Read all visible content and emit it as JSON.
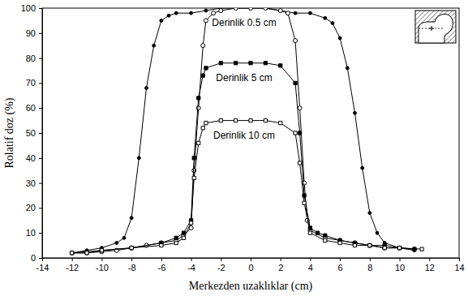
{
  "chart_data": {
    "type": "line",
    "x_label": "Merkezden uzaklıklar (cm)",
    "y_label": "Rolatif doz (%)",
    "xlim": [
      -14,
      14
    ],
    "ylim": [
      0,
      100
    ],
    "xticks": [
      -14,
      -12,
      -10,
      -8,
      -6,
      -4,
      -2,
      0,
      2,
      4,
      6,
      8,
      10,
      12,
      14
    ],
    "yticks": [
      0,
      10,
      20,
      30,
      40,
      50,
      60,
      70,
      80,
      90,
      100
    ],
    "grid": false,
    "series": [
      {
        "color": "#000000",
        "marker": "filled-circle",
        "line_style": "solid",
        "x": [
          -12,
          -11,
          -10,
          -9,
          -8.5,
          -8,
          -7.5,
          -7,
          -6.5,
          -6,
          -5.5,
          -5,
          -4,
          -3,
          -2,
          -1,
          0,
          1,
          2,
          3,
          4,
          5,
          5.5,
          6,
          6.5,
          7,
          7.5,
          8,
          8.5,
          9,
          10,
          11
        ],
        "values": [
          2,
          3,
          4,
          6,
          8,
          16,
          40,
          68,
          85,
          95,
          97,
          98,
          98,
          99,
          100,
          100,
          100,
          100,
          99,
          98,
          98,
          96,
          94,
          88,
          76,
          58,
          36,
          18,
          10,
          6,
          4,
          3
        ]
      },
      {
        "name": "Derinlik 0.5 cm",
        "color": "#000000",
        "marker": "open-circle",
        "line_style": "solid",
        "x": [
          -12,
          -11,
          -10,
          -9,
          -8,
          -7,
          -6,
          -5,
          -4.5,
          -4,
          -3.8,
          -3.5,
          -3.2,
          -3,
          -2.5,
          -2,
          -1,
          0,
          1,
          2,
          2.5,
          3,
          3.3,
          3.6,
          3.8,
          4,
          5,
          6,
          7,
          8,
          9,
          10,
          11
        ],
        "values": [
          2,
          2,
          2.5,
          3,
          4,
          5,
          6,
          7,
          9,
          12,
          35,
          60,
          85,
          95,
          98,
          99,
          100,
          100,
          100,
          99,
          98,
          87,
          60,
          30,
          15,
          11,
          8,
          7,
          6,
          5,
          4,
          4,
          3.5
        ]
      },
      {
        "name": "Derinlik 5 cm",
        "color": "#000000",
        "marker": "filled-square",
        "line_style": "solid",
        "x": [
          -12,
          -10,
          -8,
          -6,
          -5,
          -4.5,
          -4,
          -3.8,
          -3.5,
          -3.2,
          -3,
          -2,
          -1,
          0,
          1,
          2,
          3,
          3.3,
          3.6,
          4,
          4.5,
          5,
          6,
          7,
          8,
          9,
          10,
          11
        ],
        "values": [
          2,
          3,
          4,
          6,
          8,
          10,
          15,
          40,
          64,
          73,
          76,
          78,
          78,
          78,
          78,
          77,
          70,
          50,
          25,
          12,
          10,
          9,
          7,
          6,
          5,
          5,
          4,
          3.5
        ]
      },
      {
        "name": "Derinlik 10 cm",
        "color": "#000000",
        "marker": "open-square",
        "line_style": "solid",
        "x": [
          -12,
          -11,
          -10,
          -8,
          -6,
          -5,
          -4.5,
          -4,
          -3.8,
          -3.5,
          -3.2,
          -3,
          -2,
          -1,
          0,
          1,
          2,
          3,
          3.3,
          3.6,
          4,
          5,
          6,
          7,
          8,
          9,
          10,
          11.5
        ],
        "values": [
          2,
          2,
          3,
          4,
          5,
          6,
          8,
          14,
          32,
          46,
          52,
          54,
          55,
          55,
          55,
          55,
          54,
          50,
          38,
          22,
          10,
          7,
          6,
          5,
          5,
          4,
          4,
          3.5
        ]
      }
    ]
  }
}
